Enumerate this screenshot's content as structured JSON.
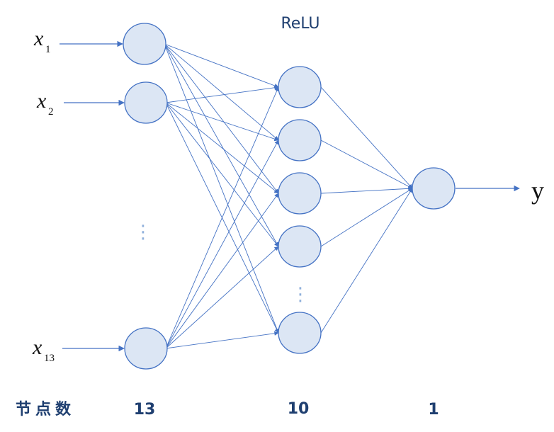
{
  "activation_label": "ReLU",
  "inputs": [
    {
      "var": "x",
      "sub": "1"
    },
    {
      "var": "x",
      "sub": "2"
    },
    {
      "var": "x",
      "sub": "13"
    }
  ],
  "output_label": "y",
  "node_count_label": "节点数",
  "layer_counts": [
    "13",
    "10",
    "1"
  ],
  "ellipsis": "⋮",
  "colors": {
    "node_fill": "#dce6f4",
    "node_stroke": "#4472c4",
    "edge": "#4472c4",
    "text_dark": "#1f3f70"
  }
}
